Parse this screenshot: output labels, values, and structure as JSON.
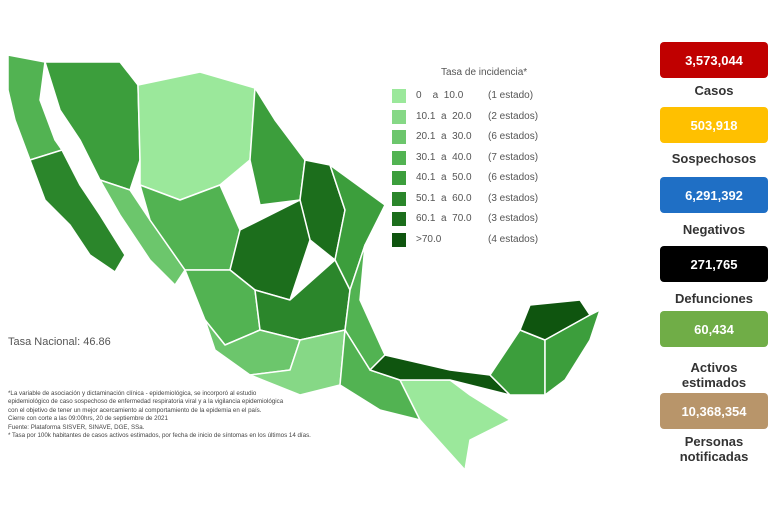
{
  "legend": {
    "title": "Tasa de incidencia*",
    "items": [
      {
        "range": "0    a  10.0",
        "count": "(1 estado)",
        "color": "#9be89b"
      },
      {
        "range": "10.1  a  20.0",
        "count": "(2 estados)",
        "color": "#86d886"
      },
      {
        "range": "20.1  a  30.0",
        "count": "(6 estados)",
        "color": "#6cc66c"
      },
      {
        "range": "30.1  a  40.0",
        "count": "(7 estados)",
        "color": "#52b352"
      },
      {
        "range": "40.1  a  50.0",
        "count": "(6 estados)",
        "color": "#3c9e3c"
      },
      {
        "range": "50.1  a  60.0",
        "count": "(3 estados)",
        "color": "#2b862b"
      },
      {
        "range": "60.1  a  70.0",
        "count": "(3 estados)",
        "color": "#1c6e1c"
      },
      {
        "range": ">70.0",
        "count": "(4 estados)",
        "color": "#0f550f"
      }
    ]
  },
  "tasa_nacional": "Tasa Nacional: 46.86",
  "notes": [
    "*La variable de asociación y dictaminación clínica - epidemiológica, se incorporó al estudio",
    "epidemiológico de caso sospechoso de enfermedad respiratoria viral y a la vigilancia epidemiológica",
    "con el objetivo de tener un mejor acercamiento al comportamiento de la epidemia en el país.",
    "Cierre con corte a las 09:00hrs, 20 de septiembre de 2021",
    "Fuente: Plataforma SISVER, SINAVE, DGE, SSa.",
    "* Tasa por 100k habitantes de casos activos estimados, por fecha de inicio de síntomas en los últimos 14 días."
  ],
  "stats": [
    {
      "value": "3,573,044",
      "label": "Casos",
      "color": "#c00000",
      "text_color": "#ffffff"
    },
    {
      "value": "503,918",
      "label": "Sospechosos",
      "color": "#ffc000",
      "text_color": "#ffffff"
    },
    {
      "value": "6,291,392",
      "label": "Negativos",
      "color": "#1f6fc5",
      "text_color": "#ffffff"
    },
    {
      "value": "271,765",
      "label": "Defunciones",
      "color": "#000000",
      "text_color": "#ffffff"
    },
    {
      "value": "60,434",
      "label": "Activos estimados",
      "color": "#70ad47",
      "text_color": "#ffffff"
    },
    {
      "value": "10,368,354",
      "label": "Personas notificadas",
      "color": "#b8956a",
      "text_color": "#ffffff"
    }
  ]
}
